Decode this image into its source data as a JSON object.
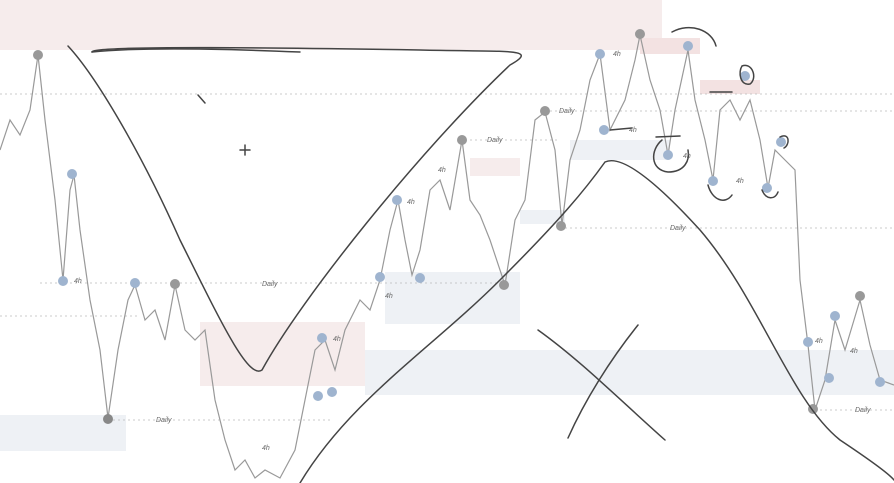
{
  "labels": [
    "4h",
    "Daily",
    "Daily",
    "4h",
    "4h",
    "4h",
    "Daily",
    "4h",
    "4h",
    "Daily",
    "4h",
    "4h",
    "4h",
    "4h",
    "Daily",
    "4h",
    "4h",
    "Daily"
  ]
}
